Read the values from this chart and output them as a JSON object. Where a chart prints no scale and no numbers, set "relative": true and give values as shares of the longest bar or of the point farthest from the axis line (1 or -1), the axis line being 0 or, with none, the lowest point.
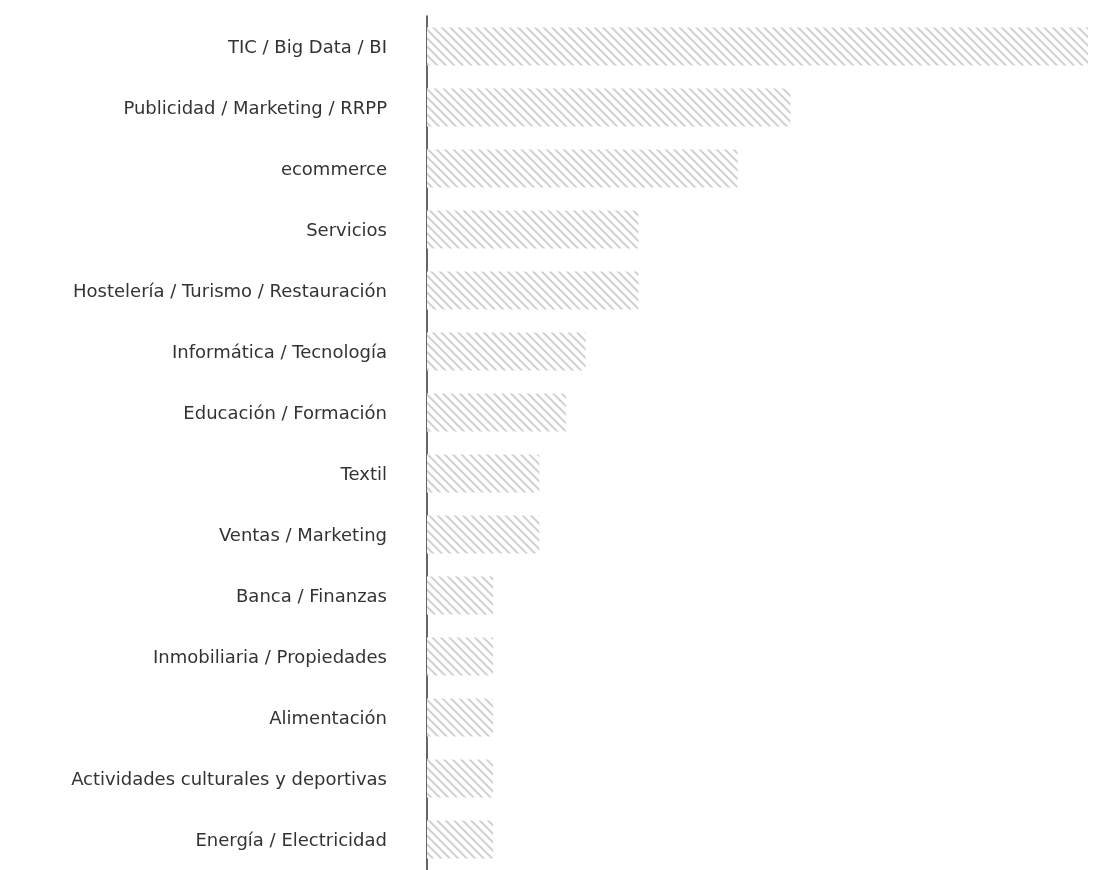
{
  "chart_data": {
    "type": "bar",
    "orientation": "horizontal",
    "relative": true,
    "color": "#d0d0d0",
    "categories": [
      "TIC / Big Data / BI",
      "Publicidad / Marketing / RRPP",
      "ecommerce",
      "Servicios",
      "Hostelería / Turismo / Restauración",
      "Informática / Tecnología",
      "Educación / Formación",
      "Textil",
      "Ventas / Marketing",
      "Banca / Finanzas",
      "Inmobiliaria / Propiedades",
      "Alimentación",
      "Actividades culturales y deportivas",
      "Energía / Electricidad"
    ],
    "values": [
      1,
      0.55,
      0.47,
      0.32,
      0.32,
      0.24,
      0.21,
      0.17,
      0.17,
      0.1,
      0.1,
      0.1,
      0.1,
      0.1
    ]
  }
}
